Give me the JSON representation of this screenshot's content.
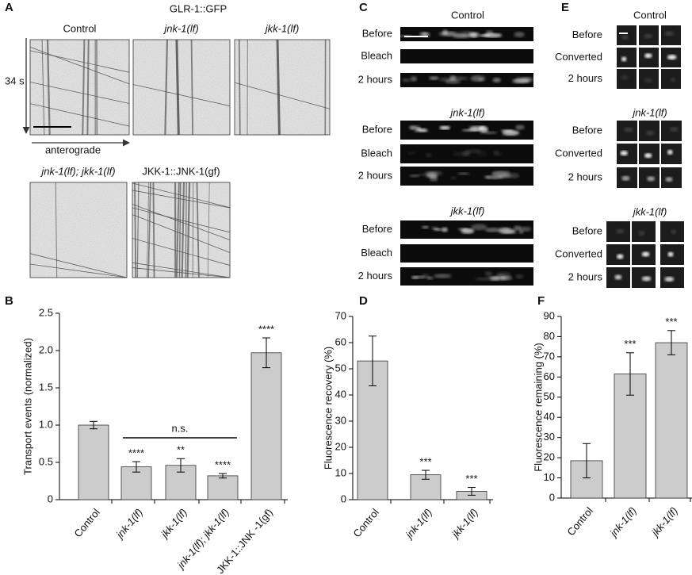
{
  "panel_labels": [
    "A",
    "B",
    "C",
    "D",
    "E",
    "F"
  ],
  "panel_a": {
    "title": "GLR-1::GFP",
    "time_label": "34 s",
    "direction_label": "anterograde",
    "kymographs": [
      "Control",
      "jnk-1(lf)",
      "jkk-1(lf)",
      "jnk-1(lf); jkk-1(lf)",
      "JKK-1::JNK-1(gf)"
    ]
  },
  "panel_c": {
    "groups": [
      {
        "title": "Control",
        "rows": [
          "Before",
          "Bleach",
          "2 hours"
        ]
      },
      {
        "title": "jnk-1(lf)",
        "rows": [
          "Before",
          "Bleach",
          "2 hours"
        ]
      },
      {
        "title": "jkk-1(lf)",
        "rows": [
          "Before",
          "Bleach",
          "2 hours"
        ]
      }
    ]
  },
  "panel_e": {
    "groups": [
      {
        "title": "Control",
        "rows": [
          "Before",
          "Converted",
          "2 hours"
        ]
      },
      {
        "title": "jnk-1(lf)",
        "rows": [
          "Before",
          "Converted",
          "2 hours"
        ]
      },
      {
        "title": "jkk-1(lf)",
        "rows": [
          "Before",
          "Converted",
          "2 hours"
        ]
      }
    ]
  },
  "chart_data": [
    {
      "type": "bar",
      "ylabel": "Transport events (normalized)",
      "categories": [
        "Control",
        "jnk-1(lf)",
        "jkk-1(lf)",
        "jnk-1(lf); jkk-1(lf)",
        "JKK-1::JNK -1(gf)"
      ],
      "values": [
        1.0,
        0.44,
        0.46,
        0.32,
        1.97
      ],
      "errors": [
        0.05,
        0.07,
        0.09,
        0.03,
        0.2
      ],
      "annotations": [
        null,
        "****",
        "**",
        "****",
        "****"
      ],
      "bracket_label": "n.s.",
      "color": "#cccccc",
      "ylim": [
        0,
        2.5
      ],
      "yticks": [
        0,
        0.5,
        {
          "value": 1,
          "label": "1.0"
        },
        1.5,
        {
          "value": 2,
          "label": "2.0"
        },
        2.5
      ]
    },
    {
      "type": "bar",
      "ylabel": "Fluorescence recovery (%)",
      "categories": [
        "Control",
        "jnk-1(lf)",
        "jkk-1(lf)"
      ],
      "values": [
        53,
        9.5,
        3.2
      ],
      "errors": [
        9.5,
        1.7,
        1.5
      ],
      "annotations": [
        null,
        "***",
        "***"
      ],
      "color": "#cccccc",
      "ylim": [
        0,
        70
      ],
      "yticks": [
        0,
        10,
        20,
        30,
        40,
        50,
        60,
        70
      ]
    },
    {
      "type": "bar",
      "ylabel": "Fluorescence remaining (%)",
      "categories": [
        "Control",
        "jnk-1(lf)",
        "jkk-1(lf)"
      ],
      "values": [
        18.5,
        61.5,
        77
      ],
      "errors": [
        8.5,
        10.5,
        6
      ],
      "annotations": [
        null,
        "***",
        "***"
      ],
      "color": "#cccccc",
      "ylim": [
        0,
        90
      ],
      "yticks": [
        0,
        10,
        20,
        30,
        40,
        50,
        60,
        70,
        80,
        90
      ]
    }
  ]
}
